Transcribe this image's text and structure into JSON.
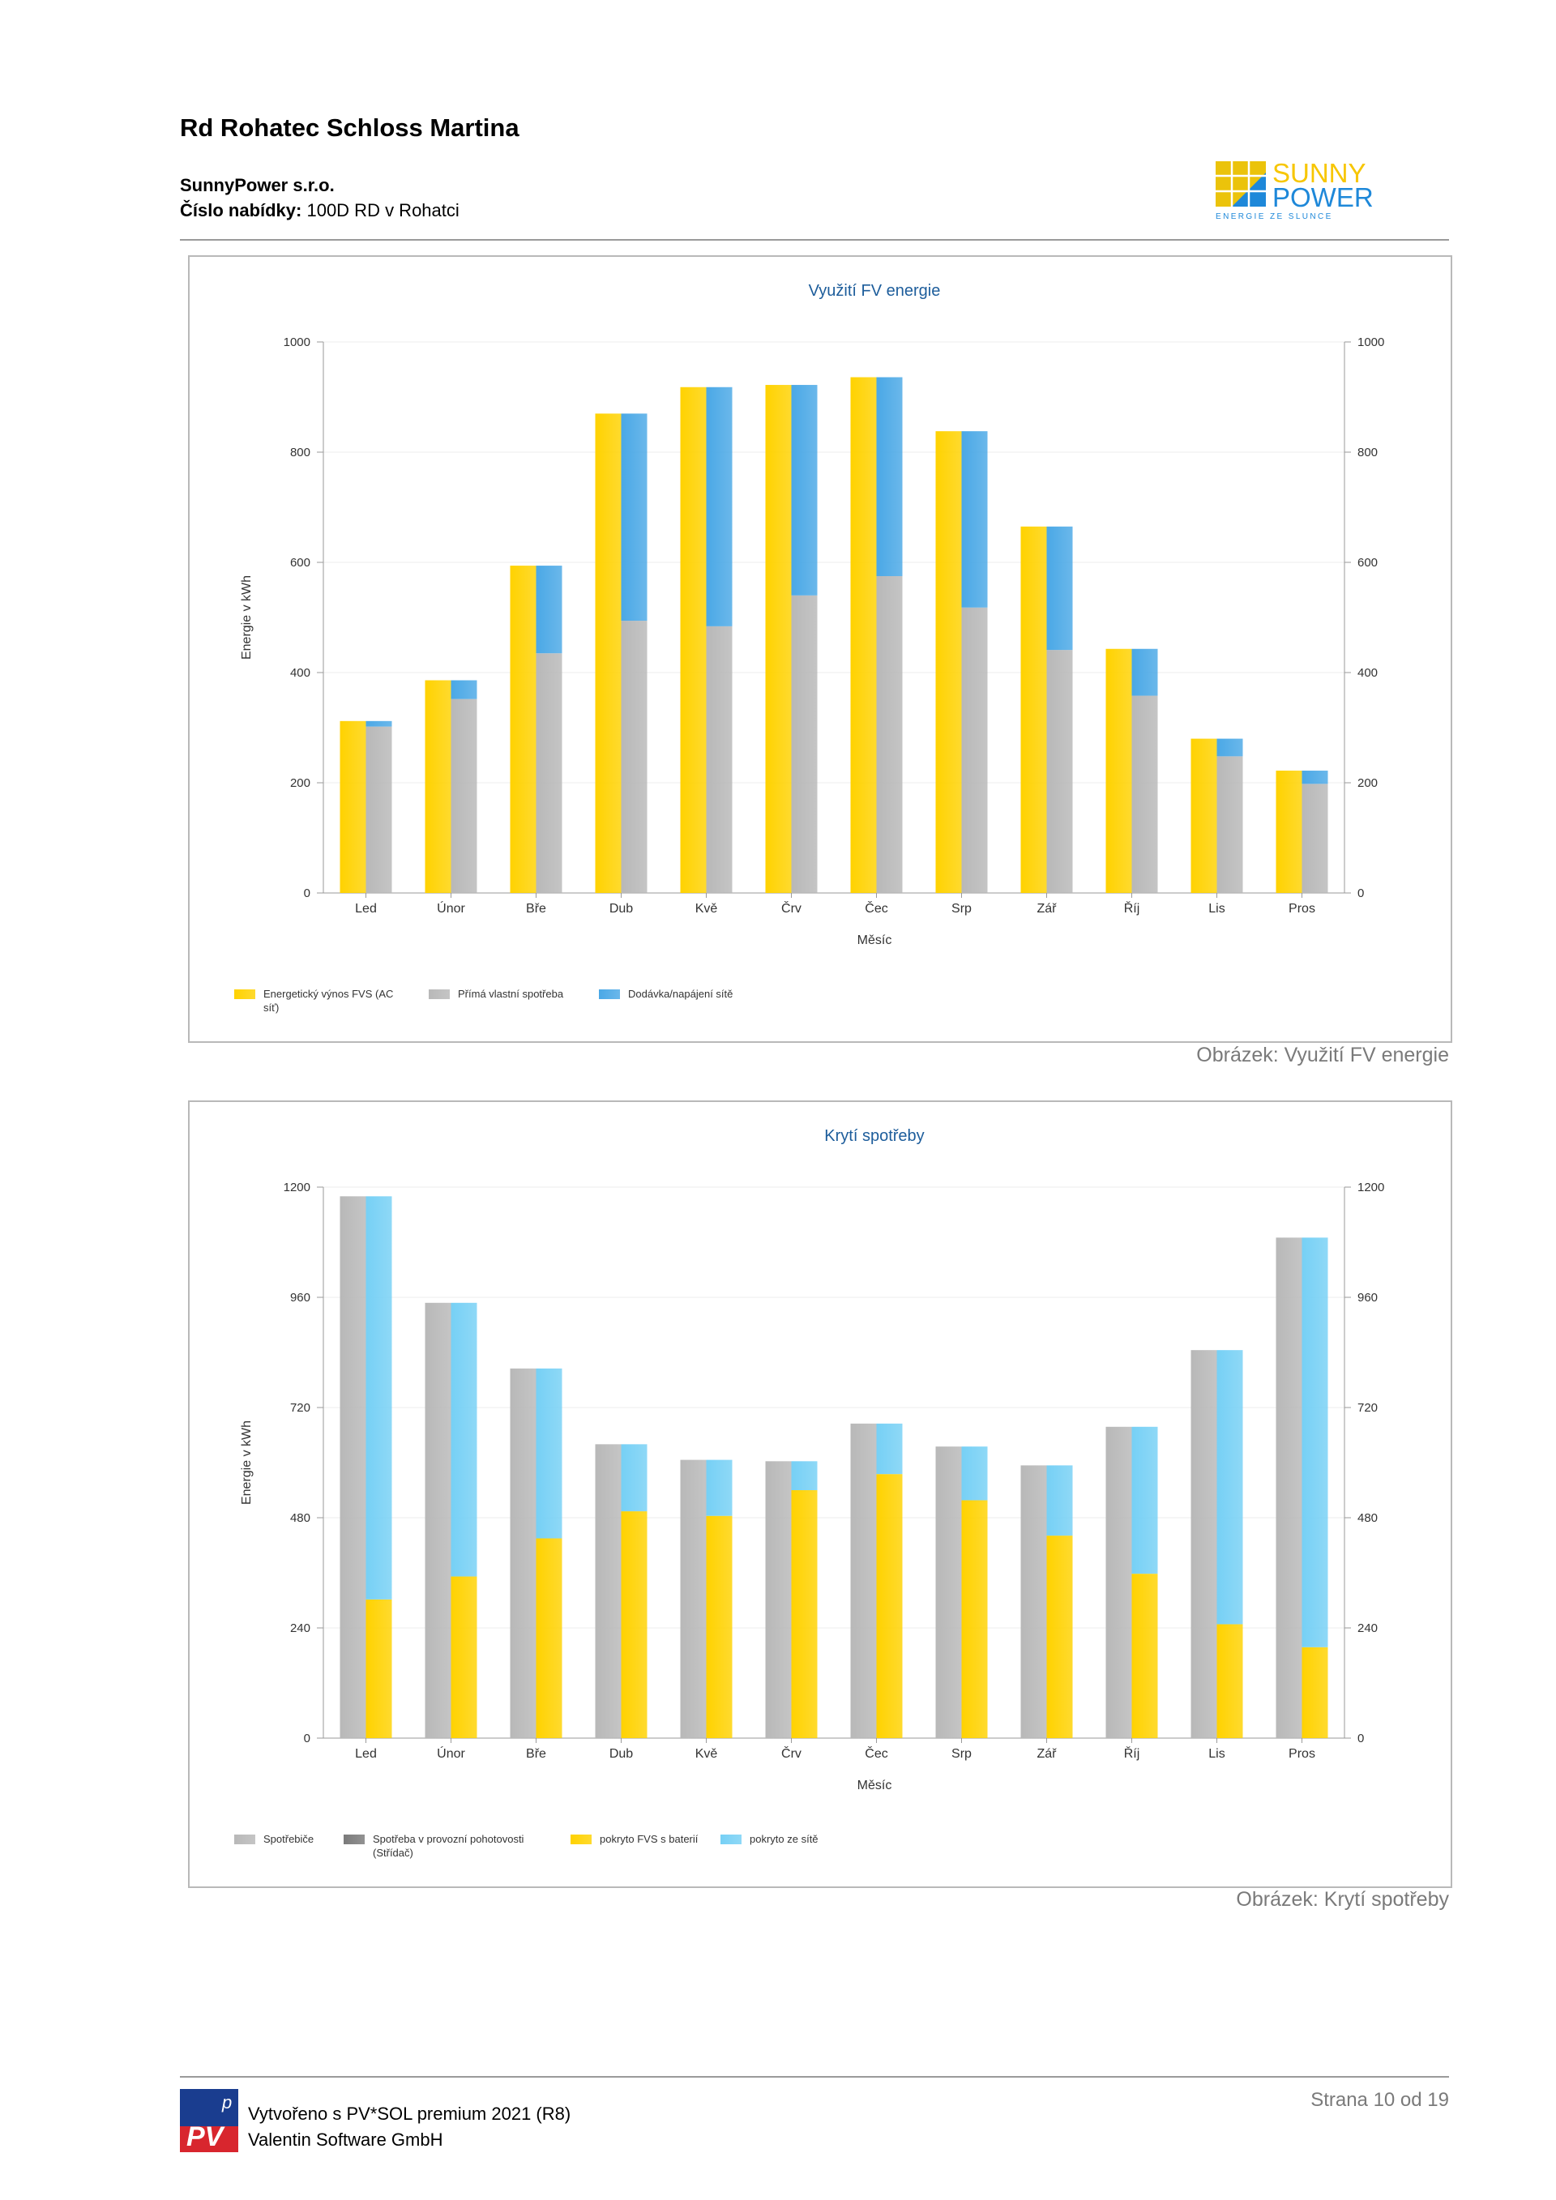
{
  "header": {
    "title": "Rd Rohatec Schloss Martina",
    "company": "SunnyPower s.r.o.",
    "offer_label": "Číslo nabídky:",
    "offer_value": " 100D RD v Rohatci",
    "logo_text_top": "SUNNY",
    "logo_text_bottom": "POWER",
    "logo_tagline": "ENERGIE ZE SLUNCE"
  },
  "captions": {
    "chart1": "Obrázek: Využití FV energie",
    "chart2": "Obrázek: Krytí spotřeby"
  },
  "footer": {
    "credit_line1": "Vytvořeno s PV*SOL premium 2021 (R8)",
    "credit_line2": "Valentin Software GmbH",
    "page": "Strana 10 od 19",
    "logo_text": "PV",
    "logo_sup": "p"
  },
  "colors": {
    "yellow": "#ffd200",
    "gray": "#b8b8b8",
    "blue": "#4aa8e6",
    "lightblue": "#76d0f5",
    "darkgray": "#7a7a7a",
    "title_blue": "#1d5d9b",
    "brand_blue": "#1e88d9",
    "brand_yellow": "#f7c600"
  },
  "chart_data": [
    {
      "type": "bar",
      "title": "Využití FV energie",
      "xlabel": "Měsíc",
      "ylabel": "Energie v kWh",
      "ylim": [
        0,
        1000
      ],
      "yticks": [
        0,
        200,
        400,
        600,
        800,
        1000
      ],
      "grid": true,
      "legend_position": "bottom-left",
      "categories": [
        "Led",
        "Únor",
        "Bře",
        "Dub",
        "Kvě",
        "Črv",
        "Čec",
        "Srp",
        "Zář",
        "Říj",
        "Lis",
        "Pros"
      ],
      "series": [
        {
          "name": "Energetický výnos FVS (AC síť)",
          "stack": "a",
          "color": "#ffd200",
          "values": [
            312,
            386,
            594,
            870,
            918,
            922,
            936,
            838,
            665,
            443,
            280,
            222
          ]
        },
        {
          "name": "Přímá vlastní spotřeba",
          "stack": "b",
          "color": "#b8b8b8",
          "values": [
            302,
            352,
            435,
            494,
            484,
            540,
            575,
            518,
            441,
            358,
            248,
            198
          ]
        },
        {
          "name": "Dodávka/napájení sítě",
          "stack": "b",
          "color": "#4aa8e6",
          "values": [
            10,
            34,
            159,
            376,
            434,
            382,
            361,
            320,
            224,
            85,
            32,
            24
          ]
        }
      ]
    },
    {
      "type": "bar",
      "title": "Krytí spotřeby",
      "xlabel": "Měsíc",
      "ylabel": "Energie v kWh",
      "ylim": [
        0,
        1200
      ],
      "yticks": [
        0,
        240,
        480,
        720,
        960,
        1200
      ],
      "grid": true,
      "legend_position": "bottom-left",
      "categories": [
        "Led",
        "Únor",
        "Bře",
        "Dub",
        "Kvě",
        "Črv",
        "Čec",
        "Srp",
        "Zář",
        "Říj",
        "Lis",
        "Pros"
      ],
      "series": [
        {
          "name": "Spotřebiče",
          "stack": "a",
          "color": "#b8b8b8",
          "values": [
            1180,
            948,
            805,
            640,
            606,
            603,
            685,
            635,
            594,
            678,
            845,
            1090
          ]
        },
        {
          "name": "Spotřeba v provozní pohotovosti (Střídač)",
          "stack": "a",
          "color": "#7a7a7a",
          "values": [
            0,
            0,
            0,
            0,
            0,
            0,
            0,
            0,
            0,
            0,
            0,
            0
          ]
        },
        {
          "name": "pokryto FVS s baterií",
          "stack": "b",
          "color": "#ffd200",
          "values": [
            302,
            352,
            435,
            494,
            484,
            540,
            575,
            518,
            441,
            358,
            248,
            198
          ]
        },
        {
          "name": "pokryto ze sítě",
          "stack": "b",
          "color": "#76d0f5",
          "values": [
            878,
            596,
            370,
            146,
            122,
            63,
            110,
            117,
            153,
            320,
            597,
            892
          ]
        }
      ]
    }
  ]
}
